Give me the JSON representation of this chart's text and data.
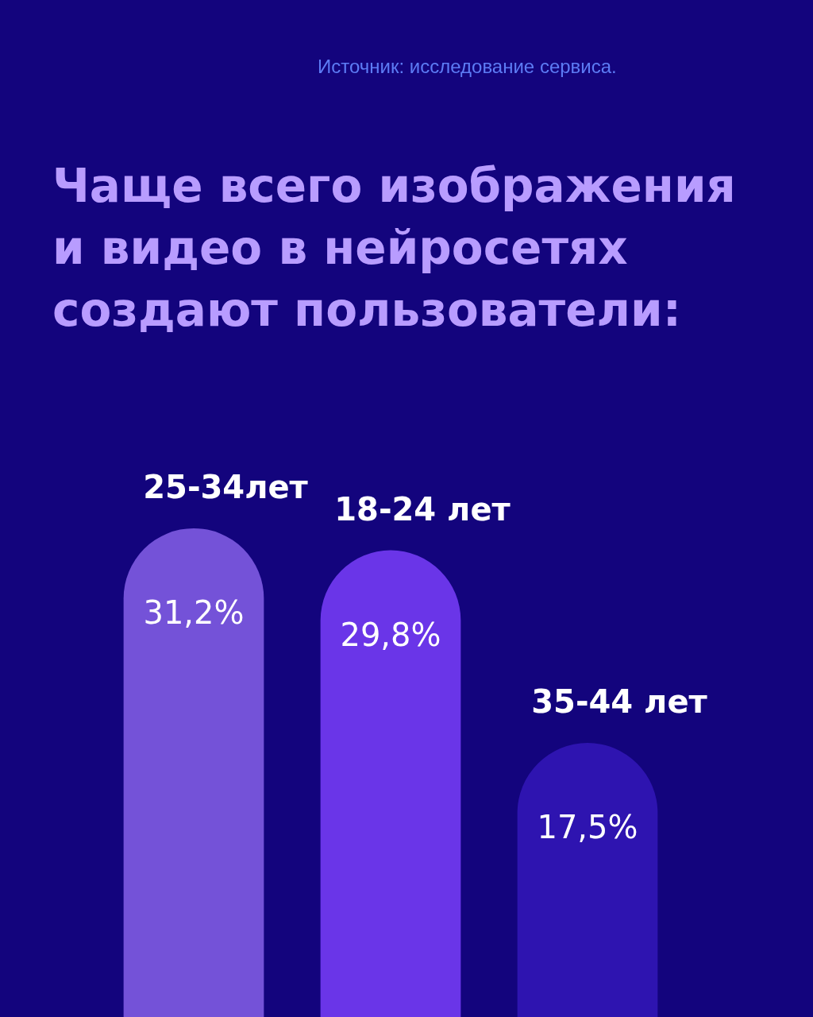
{
  "chart_data": {
    "type": "bar",
    "title": "Чаще всего изображения и видео в нейросетях создают пользователи:",
    "annotations": [
      "Источник: исследование сервиса."
    ],
    "categories": [
      "25-34лет",
      "18-24 лет",
      "35-44 лет"
    ],
    "values": [
      31.2,
      29.8,
      17.5
    ],
    "colors": [
      "#7452d8",
      "#6a35e8",
      "#2e14b0"
    ],
    "value_labels": [
      "31,2%",
      "29,8%",
      "17,5%"
    ],
    "legend": false
  }
}
